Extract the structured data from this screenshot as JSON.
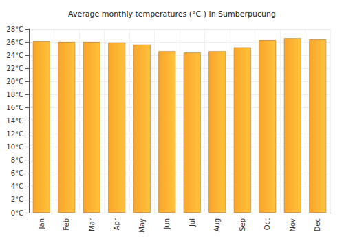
{
  "chart_data": {
    "type": "bar",
    "title": "Average monthly temperatures (°C ) in Sumberpucung",
    "categories": [
      "Jan",
      "Feb",
      "Mar",
      "Apr",
      "May",
      "Jun",
      "Jul",
      "Aug",
      "Sep",
      "Oct",
      "Nov",
      "Dec"
    ],
    "values": [
      26.1,
      26.0,
      26.0,
      25.9,
      25.6,
      24.6,
      24.4,
      24.6,
      25.2,
      26.3,
      26.6,
      26.4
    ],
    "color": "#f9a52c",
    "ylim": [
      0,
      28
    ],
    "yticks": [
      {
        "value": 0,
        "label": "0°C"
      },
      {
        "value": 2,
        "label": "2°C"
      },
      {
        "value": 4,
        "label": "4°C"
      },
      {
        "value": 6,
        "label": "6°C"
      },
      {
        "value": 8,
        "label": "8°C"
      },
      {
        "value": 10,
        "label": "10°C"
      },
      {
        "value": 12,
        "label": "12°C"
      },
      {
        "value": 14,
        "label": "14°C"
      },
      {
        "value": 16,
        "label": "16°C"
      },
      {
        "value": 18,
        "label": "18°C"
      },
      {
        "value": 20,
        "label": "20°C"
      },
      {
        "value": 22,
        "label": "22°C"
      },
      {
        "value": 24,
        "label": "24°C"
      },
      {
        "value": 26,
        "label": "26°C"
      },
      {
        "value": 28,
        "label": "28°C"
      }
    ],
    "grid": true
  }
}
